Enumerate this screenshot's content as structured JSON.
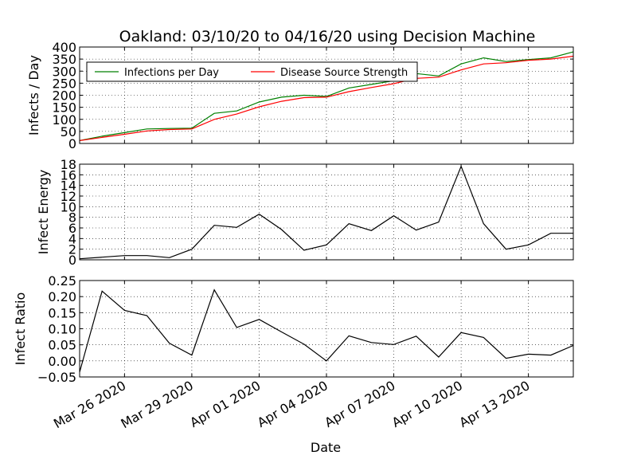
{
  "chart_data": {
    "type": "line",
    "title": "Oakland: 03/10/20 to 04/16/20 using Decision Machine",
    "xlabel": "Date",
    "x_tick_labels": [
      "Mar 26 2020",
      "Mar 29 2020",
      "Apr 01 2020",
      "Apr 04 2020",
      "Apr 07 2020",
      "Apr 10 2020",
      "Apr 13 2020"
    ],
    "x_tick_positions": [
      2,
      5,
      8,
      11,
      14,
      17,
      20
    ],
    "xlim": [
      0,
      22
    ],
    "panels": [
      {
        "ylabel": "Infects / Day",
        "ylim": [
          0,
          400
        ],
        "yticks": [
          0,
          50,
          100,
          150,
          200,
          250,
          300,
          350,
          400
        ],
        "ytick_labels": [
          "0",
          "50",
          "100",
          "150",
          "200",
          "250",
          "300",
          "350",
          "400"
        ],
        "legend": "upper-left",
        "series": [
          {
            "name": "Infections per Day",
            "color": "#008000",
            "x": [
              0,
              1,
              2,
              3,
              4,
              5,
              6,
              7,
              8,
              9,
              10,
              11,
              12,
              13,
              14,
              15,
              16,
              17,
              18,
              19,
              20,
              21,
              22
            ],
            "values": [
              12,
              30,
              45,
              60,
              62,
              63,
              125,
              135,
              172,
              192,
              200,
              195,
              230,
              245,
              260,
              290,
              280,
              330,
              355,
              340,
              348,
              355,
              380
            ]
          },
          {
            "name": "Disease Source Strength",
            "color": "#ff0000",
            "x": [
              0,
              1,
              2,
              3,
              4,
              5,
              6,
              7,
              8,
              9,
              10,
              11,
              12,
              13,
              14,
              15,
              16,
              17,
              18,
              19,
              20,
              21,
              22
            ],
            "values": [
              12,
              25,
              38,
              52,
              58,
              60,
              100,
              122,
              152,
              175,
              190,
              192,
              215,
              232,
              248,
              270,
              275,
              305,
              330,
              335,
              345,
              350,
              362
            ]
          }
        ]
      },
      {
        "ylabel": "Infect Energy",
        "ylim": [
          0,
          18
        ],
        "yticks": [
          0,
          2,
          4,
          6,
          8,
          10,
          12,
          14,
          16,
          18
        ],
        "ytick_labels": [
          "0",
          "2",
          "4",
          "6",
          "8",
          "10",
          "12",
          "14",
          "16",
          "18"
        ],
        "series": [
          {
            "name": "Infect Energy",
            "color": "#000000",
            "x": [
              0,
              1,
              2,
              3,
              4,
              5,
              6,
              7,
              8,
              9,
              10,
              11,
              12,
              13,
              14,
              15,
              16,
              17,
              18,
              19,
              20,
              21,
              22
            ],
            "values": [
              0.2,
              0.5,
              0.8,
              0.8,
              0.4,
              2.0,
              6.5,
              6.1,
              8.6,
              5.7,
              1.8,
              2.8,
              6.8,
              5.5,
              8.3,
              5.6,
              7.1,
              17.6,
              6.8,
              2.0,
              2.8,
              5.0,
              5.0
            ]
          }
        ]
      },
      {
        "ylabel": "Infect Ratio",
        "ylim": [
          -0.05,
          0.25
        ],
        "yticks": [
          -0.05,
          0.0,
          0.05,
          0.1,
          0.15,
          0.2,
          0.25
        ],
        "ytick_labels": [
          "−0.05",
          "0.00",
          "0.05",
          "0.10",
          "0.15",
          "0.20",
          "0.25"
        ],
        "series": [
          {
            "name": "Infect Ratio",
            "color": "#000000",
            "x": [
              0,
              1,
              2,
              3,
              4,
              5,
              6,
              7,
              8,
              9,
              10,
              11,
              12,
              13,
              14,
              15,
              16,
              17,
              18,
              19,
              20,
              21,
              22
            ],
            "values": [
              -0.035,
              0.217,
              0.157,
              0.141,
              0.055,
              0.018,
              0.221,
              0.104,
              0.129,
              0.09,
              0.052,
              0.0,
              0.078,
              0.057,
              0.051,
              0.077,
              0.012,
              0.088,
              0.073,
              0.008,
              0.021,
              0.018,
              0.048
            ]
          }
        ]
      }
    ]
  }
}
